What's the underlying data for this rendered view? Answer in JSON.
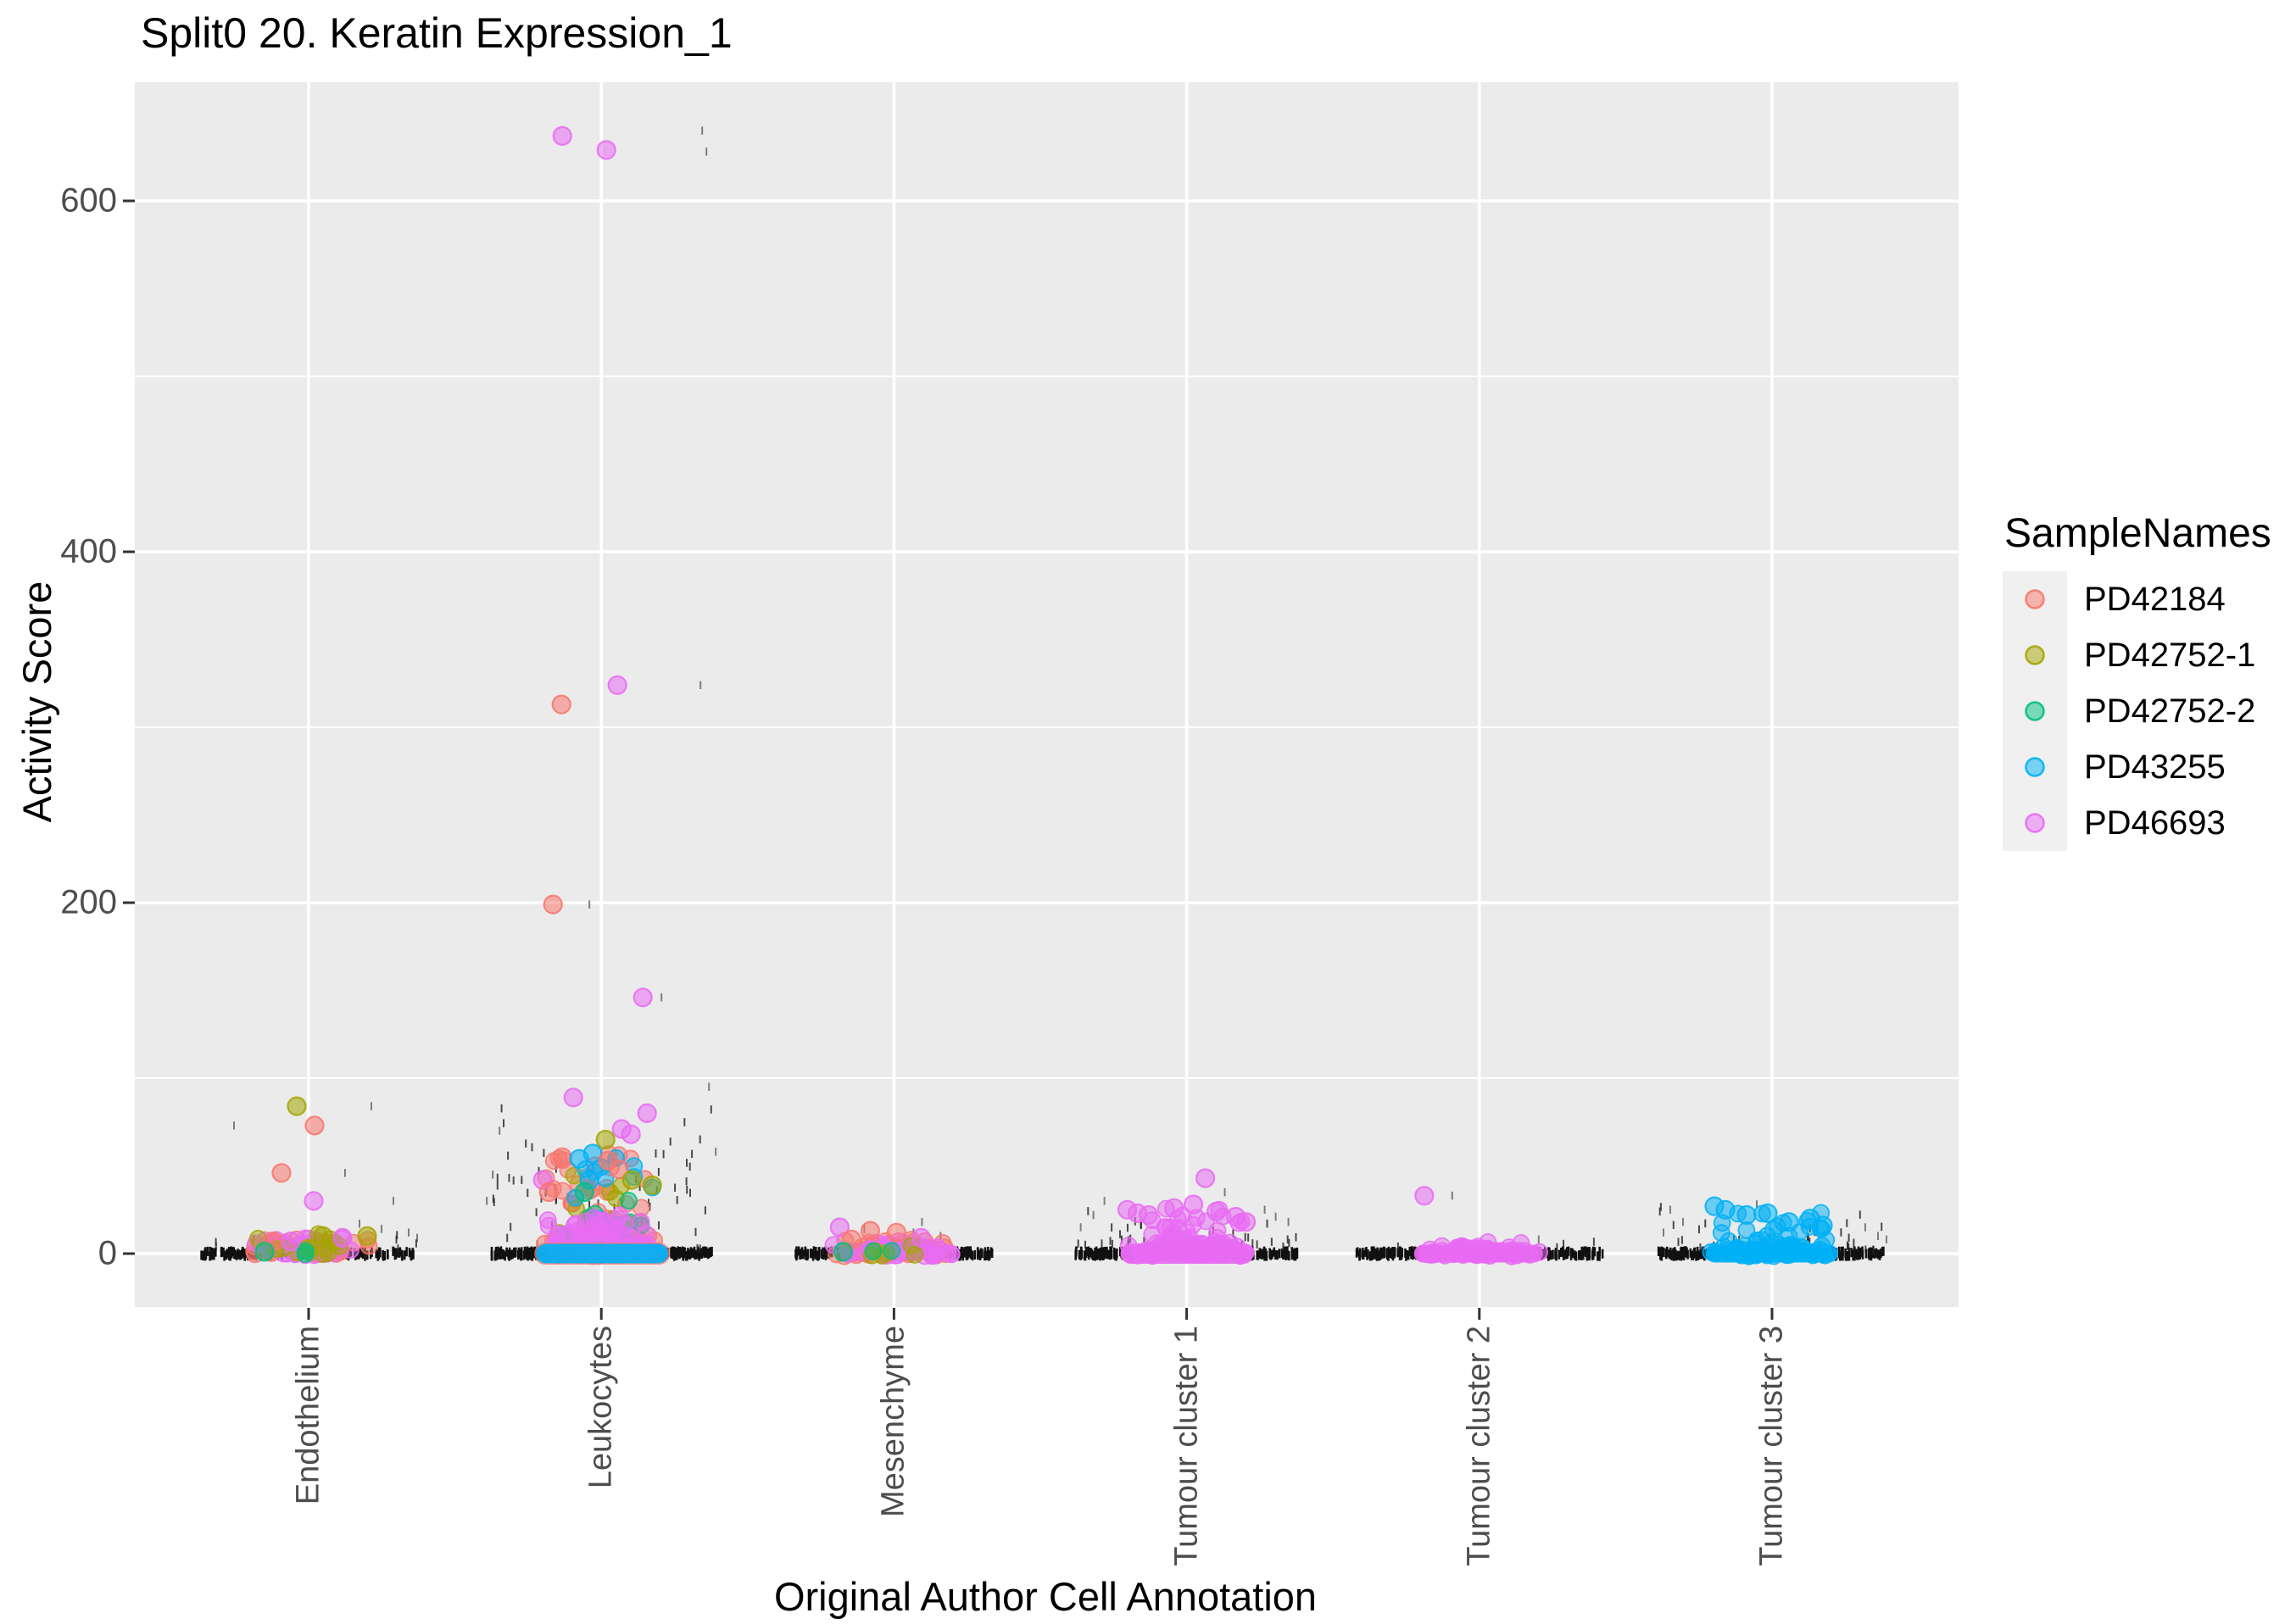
{
  "chart": {
    "title": "Split0 20. Keratin Expression_1",
    "x_axis_title": "Original Author Cell Annotation",
    "y_axis_title": "Activity Score",
    "legend_title": "SampleNames"
  },
  "chart_data": {
    "type": "scatter",
    "subtype": "jitter-strip-plot",
    "title": "Split0 20. Keratin Expression_1",
    "xlabel": "Original Author Cell Annotation",
    "ylabel": "Activity Score",
    "categories": [
      "Endothelium",
      "Leukocytes",
      "Mesenchyme",
      "Tumour cluster 1",
      "Tumour cluster 2",
      "Tumour cluster 3"
    ],
    "y_ticks": [
      0,
      200,
      400,
      600
    ],
    "y_minor_ticks": [
      100,
      300,
      500
    ],
    "ylim": [
      -31,
      672
    ],
    "grid": "on",
    "panel_background": "#EBEBEB",
    "gridline_color": "#FFFFFF",
    "axis_text_color": "#4d4d4d",
    "rug_color": "#1a1a1a",
    "legend": {
      "title": "SampleNames",
      "position": "right",
      "samples": [
        {
          "name": "PD42184",
          "color": "#F8766D"
        },
        {
          "name": "PD42752-1",
          "color": "#A3A500"
        },
        {
          "name": "PD42752-2",
          "color": "#00BF7D"
        },
        {
          "name": "PD43255",
          "color": "#00B0F6"
        },
        {
          "name": "PD46693",
          "color": "#E76BF3"
        }
      ]
    },
    "clusters": [
      {
        "category": "Endothelium",
        "clouds": [
          {
            "sample": "PD42184",
            "n": 42,
            "spread": 78,
            "vmax": 8,
            "pow": 2.2
          },
          {
            "sample": "PD46693",
            "n": 30,
            "spread": 72,
            "vmax": 9,
            "pow": 2.2
          },
          {
            "sample": "PD42752-1",
            "n": 14,
            "spread": 76,
            "vmax": 11,
            "pow": 1.8
          },
          {
            "sample": "PD42752-2",
            "n": 2,
            "spread": 50,
            "vmax": 2,
            "pow": 2.0
          }
        ],
        "pills": [],
        "outliers": [
          {
            "sample": "PD42752-1",
            "v": 84,
            "dx": -14
          },
          {
            "sample": "PD42184",
            "v": 73,
            "dx": 7
          },
          {
            "sample": "PD42184",
            "v": 46,
            "dx": -32
          },
          {
            "sample": "PD46693",
            "v": 30,
            "dx": 6
          },
          {
            "sample": "PD42752-1",
            "v": 10,
            "dx": 17
          },
          {
            "sample": "PD46693",
            "v": 9,
            "dx": 40
          },
          {
            "sample": "PD42752-1",
            "v": 10,
            "dx": 69
          },
          {
            "sample": "PD42184",
            "v": 7,
            "dx": -42
          },
          {
            "sample": "PD46693",
            "v": 7,
            "dx": -21
          },
          {
            "sample": "PD42752-2",
            "v": 1,
            "dx": -52
          }
        ],
        "black": {
          "row_n": 190,
          "row_hw": 128,
          "scatter_n": 22,
          "scatter_vmax": 13,
          "tall": [
            {
              "dx": -88,
              "v": 73
            },
            {
              "dx": 74,
              "v": 84
            },
            {
              "dx": 43,
              "v": 46
            },
            {
              "dx": 100,
              "v": 30
            },
            {
              "dx": -109,
              "v": 4
            },
            {
              "dx": 118,
              "v": 12
            },
            {
              "dx": 128,
              "v": 9
            },
            {
              "dx": 86,
              "v": 14
            },
            {
              "dx": 60,
              "v": 17
            }
          ]
        }
      },
      {
        "category": "Leukocytes",
        "clouds": [
          {
            "sample": "PD42184",
            "n": 50,
            "spread": 76,
            "vmax": 10,
            "pow": 2.2
          },
          {
            "sample": "PD42184",
            "n": 55,
            "spread": 72,
            "vmax": 58,
            "pow": 1.7
          },
          {
            "sample": "PD42752-1",
            "n": 10,
            "spread": 66,
            "vmax": 48,
            "pow": 1.4
          },
          {
            "sample": "PD42752-2",
            "n": 6,
            "spread": 62,
            "vmax": 40,
            "pow": 1.3
          },
          {
            "sample": "PD43255",
            "n": 14,
            "spread": 62,
            "vmax": 56,
            "pow": 1.5
          },
          {
            "sample": "PD46693",
            "n": 80,
            "spread": 74,
            "vmax": 21,
            "pow": 2.0
          }
        ],
        "pills": [
          {
            "sample": "PD42184",
            "dx1": -79,
            "dx2": 81,
            "hh": 13,
            "opacity": 0.75
          },
          {
            "sample": "PD43255",
            "dx1": -77,
            "dx2": 79,
            "hh": 11.5,
            "opacity": 0.93
          }
        ],
        "outliers": [
          {
            "sample": "PD46693",
            "v": 637,
            "dx": -46
          },
          {
            "sample": "PD46693",
            "v": 629,
            "dx": 6
          },
          {
            "sample": "PD46693",
            "v": 324,
            "dx": 19
          },
          {
            "sample": "PD42184",
            "v": 313,
            "dx": -47
          },
          {
            "sample": "PD42184",
            "v": 199,
            "dx": -57
          },
          {
            "sample": "PD46693",
            "v": 146,
            "dx": 49
          },
          {
            "sample": "PD46693",
            "v": 89,
            "dx": -33
          },
          {
            "sample": "PD46693",
            "v": 80,
            "dx": 54
          },
          {
            "sample": "PD46693",
            "v": 71,
            "dx": 24
          },
          {
            "sample": "PD46693",
            "v": 68,
            "dx": 35
          },
          {
            "sample": "PD42752-1",
            "v": 65,
            "dx": 5
          },
          {
            "sample": "PD42184",
            "v": 55,
            "dx": -46
          },
          {
            "sample": "PD43255",
            "v": 57,
            "dx": -10
          },
          {
            "sample": "PD43255",
            "v": 54,
            "dx": -26
          },
          {
            "sample": "PD42184",
            "v": 53,
            "dx": 8
          },
          {
            "sample": "PD42184",
            "v": 48,
            "dx": 21
          },
          {
            "sample": "PD46693",
            "v": 42,
            "dx": -69
          },
          {
            "sample": "PD42752-1",
            "v": 42,
            "dx": 36
          },
          {
            "sample": "PD42752-1",
            "v": 39,
            "dx": 60
          },
          {
            "sample": "PD43255",
            "v": 42,
            "dx": -14
          },
          {
            "sample": "PD42752-2",
            "v": 35,
            "dx": -20
          },
          {
            "sample": "PD42184",
            "v": 35,
            "dx": -62
          }
        ],
        "black": {
          "row_n": 320,
          "row_hw": 131,
          "scatter_n": 95,
          "scatter_vmax": 92,
          "tall": [
            {
              "dx": 119,
              "v": 640
            },
            {
              "dx": 124,
              "v": 628
            },
            {
              "dx": 117,
              "v": 324
            },
            {
              "dx": -14,
              "v": 199
            },
            {
              "dx": 71,
              "v": 146
            },
            {
              "dx": 127,
              "v": 95
            },
            {
              "dx": -120,
              "v": 70
            },
            {
              "dx": 135,
              "v": 58
            },
            {
              "dx": -128,
              "v": 45
            },
            {
              "dx": -135,
              "v": 30
            }
          ]
        }
      },
      {
        "category": "Mesenchyme",
        "clouds": [
          {
            "sample": "PD42184",
            "n": 60,
            "spread": 82,
            "vmax": 7,
            "pow": 2.3
          },
          {
            "sample": "PD46693",
            "n": 42,
            "spread": 76,
            "vmax": 6,
            "pow": 2.3
          },
          {
            "sample": "PD42752-1",
            "n": 6,
            "spread": 70,
            "vmax": 5,
            "pow": 2.0
          },
          {
            "sample": "PD42752-2",
            "n": 2,
            "spread": 55,
            "vmax": 3,
            "pow": 2.0
          }
        ],
        "pills": [],
        "outliers": [
          {
            "sample": "PD46693",
            "v": 15,
            "dx": -64
          },
          {
            "sample": "PD42184",
            "v": 13,
            "dx": -28
          },
          {
            "sample": "PD42184",
            "v": 12,
            "dx": 3
          },
          {
            "sample": "PD46693",
            "v": 9,
            "dx": 32
          },
          {
            "sample": "PD42184",
            "v": 8,
            "dx": -50
          },
          {
            "sample": "PD42752-2",
            "v": 1,
            "dx": -60
          }
        ],
        "black": {
          "row_n": 210,
          "row_hw": 116,
          "scatter_n": 10,
          "scatter_vmax": 9,
          "tall": [
            {
              "dx": 33,
              "v": 18
            },
            {
              "dx": 23,
              "v": 12
            },
            {
              "dx": -35,
              "v": 14
            },
            {
              "dx": 55,
              "v": 10
            }
          ]
        }
      },
      {
        "category": "Tumour cluster 1",
        "clouds": [
          {
            "sample": "PD46693",
            "n": 85,
            "spread": 78,
            "vmax": 6,
            "pow": 2.2
          },
          {
            "sample": "PD46693",
            "n": 48,
            "spread": 73,
            "vmax": 27,
            "pow": 1.7
          }
        ],
        "pills": [
          {
            "sample": "PD46693",
            "dx1": -78,
            "dx2": 79,
            "hh": 12,
            "opacity": 0.93
          }
        ],
        "outliers": [
          {
            "sample": "PD46693",
            "v": 43,
            "dx": 22
          },
          {
            "sample": "PD46693",
            "v": 25,
            "dx": -70
          },
          {
            "sample": "PD46693",
            "v": 23,
            "dx": -58
          },
          {
            "sample": "PD46693",
            "v": 22,
            "dx": -45
          },
          {
            "sample": "PD46693",
            "v": 28,
            "dx": 8
          },
          {
            "sample": "PD46693",
            "v": 24,
            "dx": 35
          },
          {
            "sample": "PD46693",
            "v": 21,
            "dx": 58
          },
          {
            "sample": "PD46693",
            "v": 26,
            "dx": -15
          },
          {
            "sample": "PD46693",
            "v": 18,
            "dx": 70
          }
        ],
        "black": {
          "row_n": 300,
          "row_hw": 133,
          "scatter_n": 55,
          "scatter_vmax": 29,
          "tall": [
            {
              "dx": -97,
              "v": 30
            },
            {
              "dx": 45,
              "v": 35
            },
            {
              "dx": -110,
              "v": 22
            },
            {
              "dx": 92,
              "v": 25
            },
            {
              "dx": 120,
              "v": 18
            },
            {
              "dx": -125,
              "v": 15
            },
            {
              "dx": 105,
              "v": 21
            }
          ]
        }
      },
      {
        "category": "Tumour cluster 2",
        "clouds": [
          {
            "sample": "PD46693",
            "n": 80,
            "spread": 76,
            "vmax": 4,
            "pow": 2.4
          },
          {
            "sample": "PD46693",
            "n": 6,
            "spread": 62,
            "vmax": 7,
            "pow": 2.0
          }
        ],
        "pills": [
          {
            "sample": "PD46693",
            "dx1": -77,
            "dx2": 75,
            "hh": 10.5,
            "opacity": 0.93
          }
        ],
        "outliers": [
          {
            "sample": "PD46693",
            "v": 33,
            "dx": -65
          }
        ],
        "black": {
          "row_n": 300,
          "row_hw": 146,
          "scatter_n": 8,
          "scatter_vmax": 6,
          "tall": [
            {
              "dx": -32,
              "v": 33
            },
            {
              "dx": 70,
              "v": 8
            }
          ]
        }
      },
      {
        "category": "Tumour cluster 3",
        "clouds": [
          {
            "sample": "PD43255",
            "n": 75,
            "spread": 78,
            "vmax": 5,
            "pow": 2.4
          },
          {
            "sample": "PD43255",
            "n": 32,
            "spread": 72,
            "vmax": 23,
            "pow": 1.7
          }
        ],
        "pills": [
          {
            "sample": "PD43255",
            "dx1": -78,
            "dx2": 78,
            "hh": 10.5,
            "opacity": 0.93
          }
        ],
        "outliers": [
          {
            "sample": "PD43255",
            "v": 25,
            "dx": -55
          },
          {
            "sample": "PD43255",
            "v": 22,
            "dx": -30
          },
          {
            "sample": "PD43255",
            "v": 18,
            "dx": 20
          },
          {
            "sample": "PD43255",
            "v": 23,
            "dx": -5
          },
          {
            "sample": "PD43255",
            "v": 20,
            "dx": 45
          },
          {
            "sample": "PD43255",
            "v": 16,
            "dx": 60
          },
          {
            "sample": "PD43255",
            "v": 27,
            "dx": -68
          }
        ],
        "black": {
          "row_n": 270,
          "row_hw": 134,
          "scatter_n": 38,
          "scatter_vmax": 27,
          "tall": [
            {
              "dx": -120,
              "v": 25
            },
            {
              "dx": -105,
              "v": 18
            },
            {
              "dx": -128,
              "v": 12
            },
            {
              "dx": 110,
              "v": 15
            },
            {
              "dx": 125,
              "v": 10
            },
            {
              "dx": -18,
              "v": 28
            },
            {
              "dx": 55,
              "v": 20
            },
            {
              "dx": 135,
              "v": 8
            }
          ]
        }
      }
    ]
  }
}
